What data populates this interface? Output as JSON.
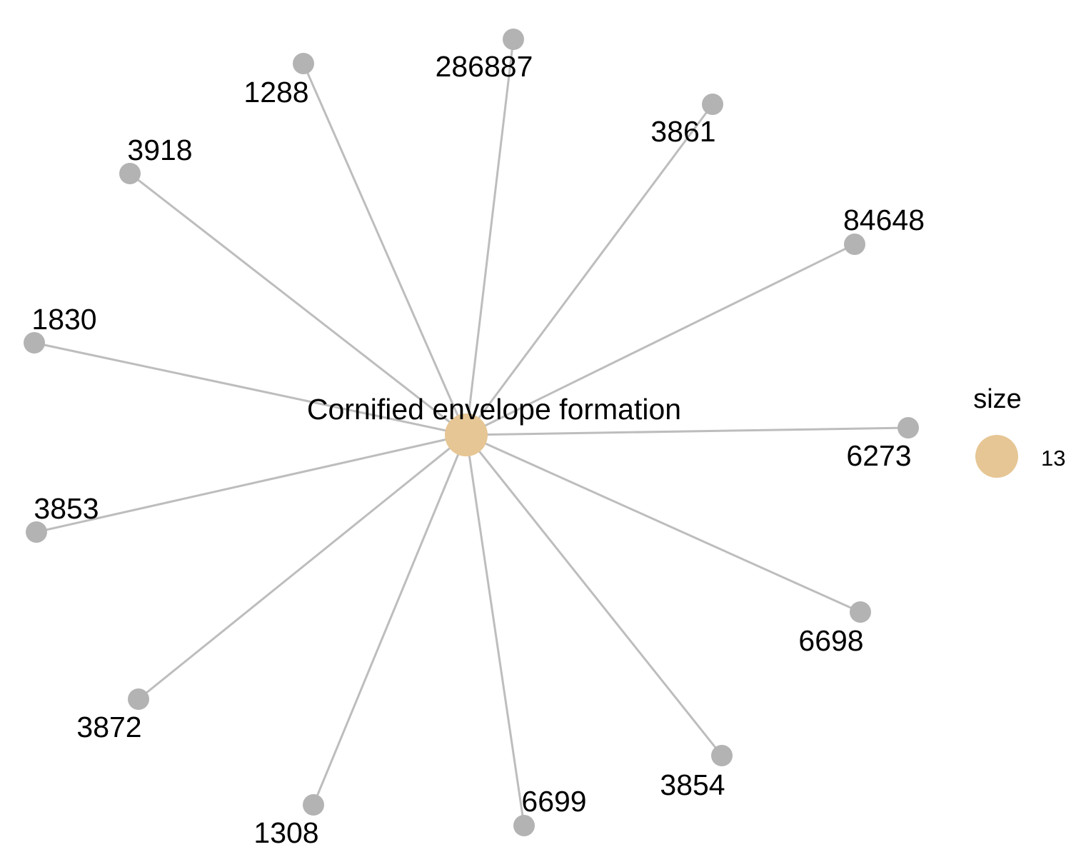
{
  "network": {
    "hub": {
      "label": "Cornified envelope formation",
      "size": 13,
      "color": "#e6c694"
    },
    "node_color": "#b3b3b3",
    "edge_color": "#bdbdbd",
    "genes": [
      {
        "id": "286887"
      },
      {
        "id": "1288"
      },
      {
        "id": "3861"
      },
      {
        "id": "3918"
      },
      {
        "id": "84648"
      },
      {
        "id": "1830"
      },
      {
        "id": "6273"
      },
      {
        "id": "3853"
      },
      {
        "id": "6698"
      },
      {
        "id": "3872"
      },
      {
        "id": "3854"
      },
      {
        "id": "6699"
      },
      {
        "id": "1308"
      }
    ]
  },
  "legend": {
    "title": "size",
    "value": "13"
  }
}
